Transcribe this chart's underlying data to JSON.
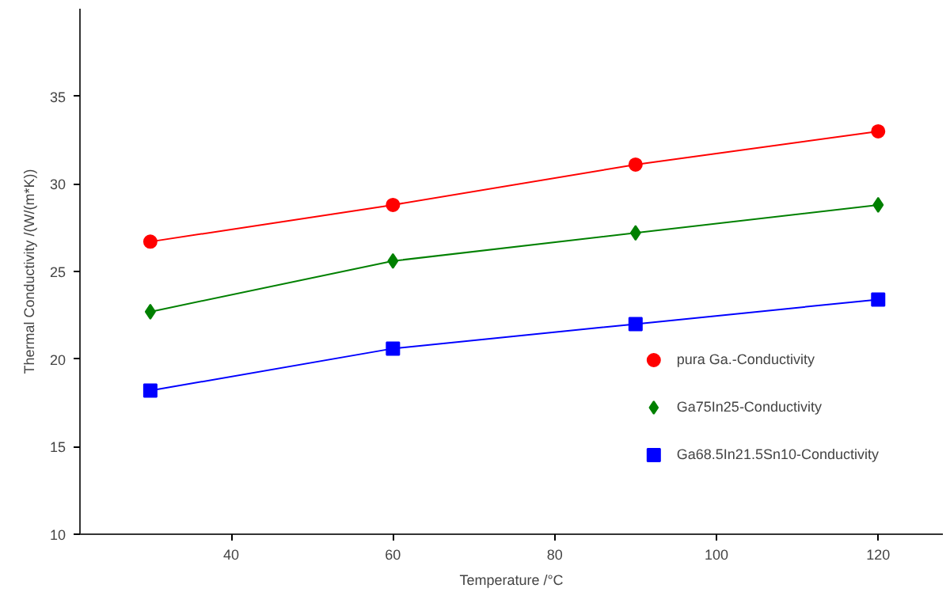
{
  "chart_data": {
    "type": "line",
    "xlabel": "Temperature /°C",
    "ylabel": "Thermal Conductivity /(W/(m*K))",
    "x": [
      30,
      60,
      90,
      120
    ],
    "series": [
      {
        "name": "pura Ga.-Conductivity",
        "color": "#ff0000",
        "marker": "circle",
        "values": [
          26.7,
          28.8,
          31.1,
          33.0
        ]
      },
      {
        "name": "Ga75In25-Conductivity",
        "color": "#008000",
        "marker": "diamond",
        "values": [
          22.7,
          25.6,
          27.2,
          28.8
        ]
      },
      {
        "name": "Ga68.5In21.5Sn10-Conductivity",
        "color": "#0000ff",
        "marker": "square",
        "values": [
          18.2,
          20.6,
          22.0,
          23.4
        ]
      }
    ],
    "xlim": [
      21.3,
      128
    ],
    "ylim": [
      10,
      40
    ],
    "xticks": [
      40,
      60,
      80,
      100,
      120
    ],
    "yticks": [
      10,
      15,
      20,
      25,
      30,
      35
    ],
    "grid": false,
    "legend": "bottom right",
    "line_style": "solid"
  }
}
